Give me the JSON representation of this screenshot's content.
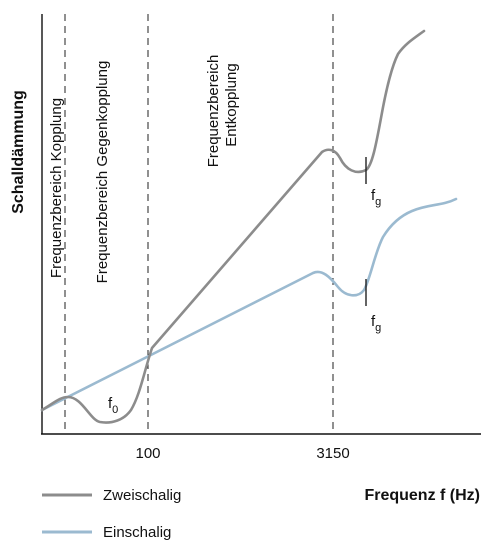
{
  "y_axis_title": "Schalldämmung",
  "x_axis_title": "Frequenz f  (Hz)",
  "x_ticks": [
    "100",
    "3150"
  ],
  "regions": {
    "kopplung": "Frequenzbereich Kopplung",
    "gegenkopplung": "Frequenzbereich Gegenkopplung",
    "entkopplung_line1": "Frequenzbereich",
    "entkopplung_line2": "Entkopplung"
  },
  "markers": {
    "f0": {
      "base": "f",
      "sub": "0"
    },
    "fg_upper": {
      "base": "f",
      "sub": "g"
    },
    "fg_lower": {
      "base": "f",
      "sub": "g"
    }
  },
  "legend": [
    {
      "label": "Zweischalig",
      "color": "#8c8c8c"
    },
    {
      "label": "Einschalig",
      "color": "#9bbad0"
    }
  ],
  "colors": {
    "zweischalig": "#8c8c8c",
    "einschalig": "#9bbad0",
    "axis": "#111111"
  }
}
